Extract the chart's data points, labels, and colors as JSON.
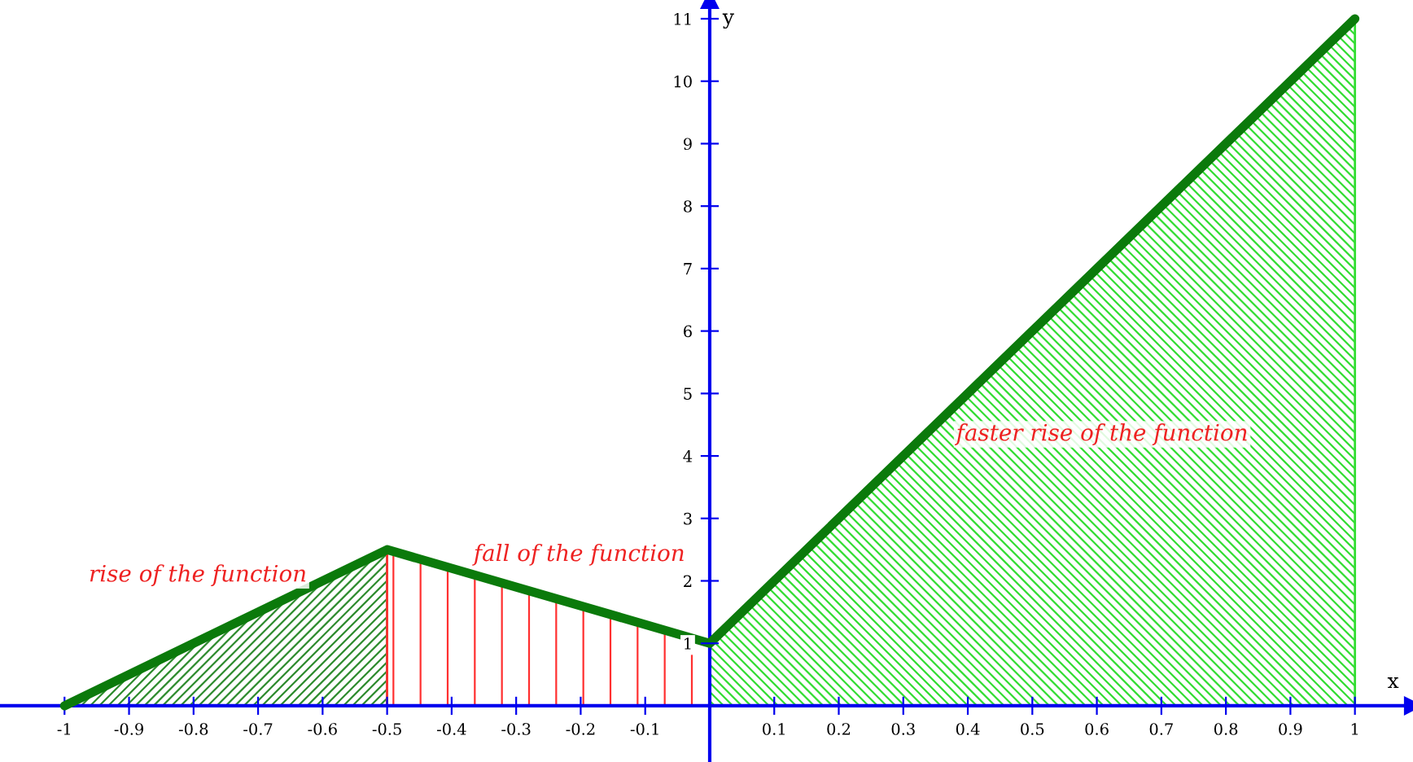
{
  "chart_data": {
    "type": "line",
    "xlabel": "x",
    "ylabel": "y",
    "series": [
      {
        "type": "area",
        "color": "#2e8b2e",
        "x": [
          -1,
          -0.5
        ],
        "values": [
          0,
          2.5
        ]
      },
      {
        "type": "area",
        "color": "#ff3030",
        "x": [
          -0.5,
          0
        ],
        "values": [
          2.5,
          1
        ]
      },
      {
        "type": "area",
        "color": "#33dd33",
        "x": [
          0,
          1
        ],
        "values": [
          1,
          11
        ]
      },
      {
        "color": "#0b7a0b",
        "x": [
          -1,
          -0.5,
          0,
          1
        ],
        "values": [
          0,
          2.5,
          1,
          11
        ]
      }
    ],
    "xlim": [
      -1.1,
      1.09
    ],
    "ylim": [
      -0.9,
      11.3
    ],
    "xticks": [
      -1,
      -0.9,
      -0.8,
      -0.7,
      -0.6,
      -0.5,
      -0.4,
      -0.3,
      -0.2,
      -0.1,
      0.1,
      0.2,
      0.3,
      0.4,
      0.5,
      0.6,
      0.7,
      0.8,
      0.9,
      1
    ],
    "yticks": [
      1,
      2,
      3,
      4,
      5,
      6,
      7,
      8,
      9,
      10,
      11
    ],
    "grid": false,
    "legend": false,
    "annotations": [
      "rise of the function",
      "fall of the function",
      "faster rise of the function"
    ]
  }
}
